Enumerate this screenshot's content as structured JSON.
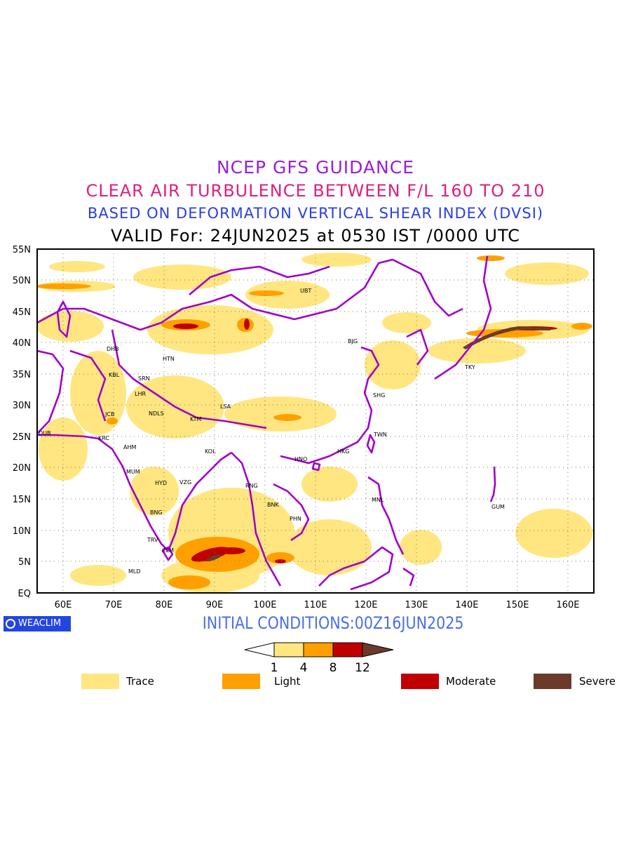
{
  "titles": {
    "line1": "NCEP GFS GUIDANCE",
    "line2": "CLEAR AIR TURBULENCE BETWEEN F/L 160 TO 210",
    "line3": "BASED ON DEFORMATION VERTICAL SHEAR INDEX (DVSI)",
    "line4": "VALID For: 24JUN2025 at 0530 IST /0000 UTC"
  },
  "map": {
    "lat_labels": [
      "55N",
      "50N",
      "45N",
      "40N",
      "35N",
      "30N",
      "25N",
      "20N",
      "15N",
      "10N",
      "5N",
      "EQ"
    ],
    "lon_labels": [
      "60E",
      "70E",
      "80E",
      "90E",
      "100E",
      "110E",
      "120E",
      "130E",
      "140E",
      "150E",
      "160E"
    ],
    "cities": [
      "UBT",
      "BJG",
      "DHB",
      "HTN",
      "KBL",
      "SRN",
      "LHR",
      "NDLS",
      "JCB",
      "KTM",
      "LSA",
      "SHG",
      "TKY",
      "DUB",
      "KRC",
      "AHM",
      "KOL",
      "TWN",
      "HKG",
      "HNO",
      "MUM",
      "HYD",
      "VZG",
      "RNG",
      "BNK",
      "PHN",
      "MNL",
      "GUM",
      "BNG",
      "TRV",
      "CLM",
      "MLD"
    ]
  },
  "logo": {
    "text": "WEACLIM"
  },
  "initial_conditions": "INITIAL CONDITIONS:00Z16JUN2025",
  "colorbar": {
    "ticks": [
      "1",
      "4",
      "8",
      "12"
    ],
    "colors": [
      "#ffe680",
      "#ffa000",
      "#c00000",
      "#6b3a2a"
    ]
  },
  "legend": [
    {
      "label": "Trace",
      "color": "#ffe680"
    },
    {
      "label": "Light",
      "color": "#ffa000"
    },
    {
      "label": "Moderate",
      "color": "#c00000"
    },
    {
      "label": "Severe",
      "color": "#6b3a2a"
    }
  ]
}
